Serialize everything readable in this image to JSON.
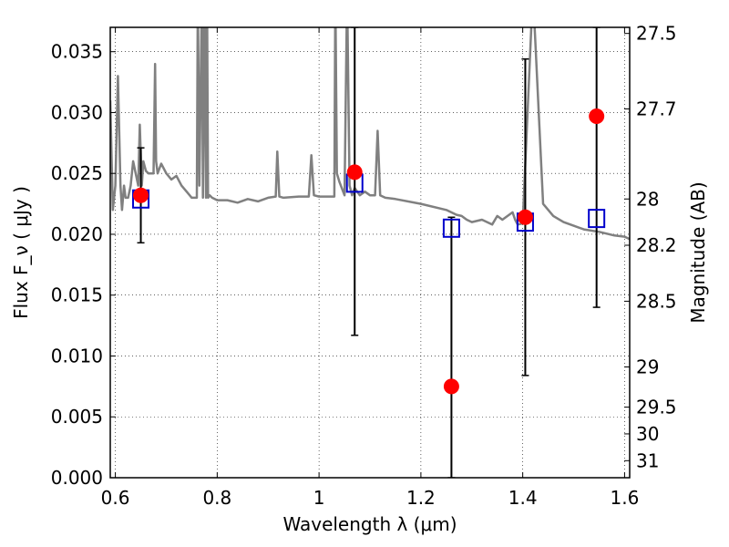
{
  "chart_data": {
    "type": "scatter",
    "xlabel": "Wavelength  λ (μm)",
    "ylabel": "Flux  F_ν  ( μJy )",
    "y2label": "Magnitude (AB)",
    "xlim": [
      0.59,
      1.61
    ],
    "ylim": [
      0.0,
      0.037
    ],
    "grid": true,
    "x_ticks": [
      {
        "value": 0.6,
        "label": "0.6"
      },
      {
        "value": 0.8,
        "label": "0.8"
      },
      {
        "value": 1.0,
        "label": "1"
      },
      {
        "value": 1.2,
        "label": "1.2"
      },
      {
        "value": 1.4,
        "label": "1.4"
      },
      {
        "value": 1.6,
        "label": "1.6"
      }
    ],
    "y_ticks": [
      {
        "value": 0.0,
        "label": "0.000"
      },
      {
        "value": 0.005,
        "label": "0.005"
      },
      {
        "value": 0.01,
        "label": "0.010"
      },
      {
        "value": 0.015,
        "label": "0.015"
      },
      {
        "value": 0.02,
        "label": "0.020"
      },
      {
        "value": 0.025,
        "label": "0.025"
      },
      {
        "value": 0.03,
        "label": "0.030"
      },
      {
        "value": 0.035,
        "label": "0.035"
      }
    ],
    "y2_ticks": [
      {
        "flux": 0.0365,
        "label": "27.5"
      },
      {
        "flux": 0.0303,
        "label": "27.7"
      },
      {
        "flux": 0.0229,
        "label": "28"
      },
      {
        "flux": 0.0191,
        "label": "28.2"
      },
      {
        "flux": 0.0145,
        "label": "28.5"
      },
      {
        "flux": 0.0091,
        "label": "29"
      },
      {
        "flux": 0.0058,
        "label": "29.5"
      },
      {
        "flux": 0.0036,
        "label": "30"
      },
      {
        "flux": 0.0014,
        "label": "31"
      }
    ],
    "series": [
      {
        "kind": "spectrum",
        "color": "#808080",
        "x": [
          0.59,
          0.595,
          0.6,
          0.605,
          0.61,
          0.613,
          0.617,
          0.62,
          0.625,
          0.63,
          0.635,
          0.64,
          0.645,
          0.648,
          0.652,
          0.655,
          0.66,
          0.665,
          0.67,
          0.675,
          0.678,
          0.68,
          0.683,
          0.69,
          0.7,
          0.71,
          0.72,
          0.73,
          0.74,
          0.75,
          0.76,
          0.762,
          0.765,
          0.77,
          0.772,
          0.775,
          0.778,
          0.78,
          0.782,
          0.785,
          0.79,
          0.8,
          0.82,
          0.84,
          0.86,
          0.88,
          0.9,
          0.915,
          0.918,
          0.922,
          0.93,
          0.96,
          0.98,
          0.985,
          0.99,
          1.0,
          1.02,
          1.03,
          1.032,
          1.035,
          1.04,
          1.05,
          1.055,
          1.06,
          1.065,
          1.07,
          1.08,
          1.09,
          1.1,
          1.11,
          1.115,
          1.12,
          1.13,
          1.15,
          1.2,
          1.25,
          1.27,
          1.28,
          1.29,
          1.3,
          1.32,
          1.34,
          1.35,
          1.36,
          1.38,
          1.385,
          1.39,
          1.4,
          1.42,
          1.44,
          1.46,
          1.48,
          1.5,
          1.52,
          1.55,
          1.58,
          1.6,
          1.61
        ],
        "y": [
          0.031,
          0.022,
          0.024,
          0.033,
          0.024,
          0.022,
          0.024,
          0.023,
          0.023,
          0.024,
          0.026,
          0.025,
          0.024,
          0.029,
          0.024,
          0.026,
          0.0252,
          0.025,
          0.025,
          0.025,
          0.034,
          0.026,
          0.025,
          0.0258,
          0.025,
          0.0245,
          0.0248,
          0.024,
          0.0235,
          0.023,
          0.023,
          0.04,
          0.024,
          0.04,
          0.023,
          0.04,
          0.023,
          0.04,
          0.023,
          0.0232,
          0.023,
          0.0228,
          0.0228,
          0.0226,
          0.0229,
          0.0227,
          0.023,
          0.0231,
          0.0268,
          0.0231,
          0.023,
          0.0231,
          0.0231,
          0.0265,
          0.0232,
          0.0231,
          0.0231,
          0.0231,
          0.04,
          0.025,
          0.0243,
          0.0232,
          0.04,
          0.024,
          0.0232,
          0.0238,
          0.0232,
          0.0235,
          0.0232,
          0.0232,
          0.0285,
          0.0232,
          0.023,
          0.0229,
          0.0225,
          0.022,
          0.0216,
          0.0215,
          0.0212,
          0.021,
          0.0212,
          0.0208,
          0.0215,
          0.0212,
          0.0218,
          0.0212,
          0.0208,
          0.0209,
          0.04,
          0.0225,
          0.0215,
          0.021,
          0.0207,
          0.0204,
          0.0202,
          0.0199,
          0.0198,
          0.0196
        ]
      },
      {
        "kind": "model_points",
        "marker": "open-square",
        "color": "#0000cc",
        "x": [
          0.65,
          1.07,
          1.26,
          1.405,
          1.545
        ],
        "y": [
          0.0229,
          0.0242,
          0.0205,
          0.021,
          0.0213
        ]
      },
      {
        "kind": "observed_points",
        "marker": "filled-circle",
        "color": "#ff0000",
        "x": [
          0.65,
          1.07,
          1.26,
          1.405,
          1.545
        ],
        "y": [
          0.0232,
          0.0251,
          0.0075,
          0.0214,
          0.0297
        ],
        "yerr_low": [
          0.0193,
          0.0117,
          0.0,
          0.0084,
          0.014
        ],
        "yerr_high": [
          0.0271,
          0.037,
          0.0214,
          0.0344,
          0.037
        ]
      }
    ]
  }
}
